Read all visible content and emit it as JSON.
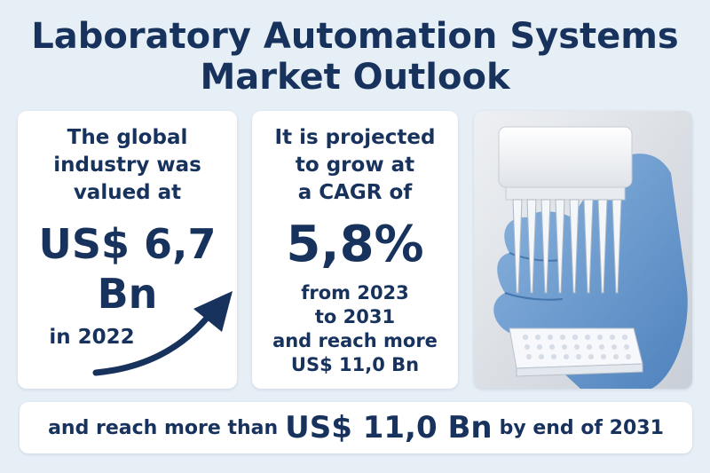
{
  "title": {
    "line1": "Laboratory Automation Systems",
    "line2": "Market Outlook"
  },
  "card_value": {
    "intro_line1": "The global",
    "intro_line2": "industry was",
    "intro_line3": "valued at",
    "amount_line1": "US$ 6,7",
    "amount_line2": "Bn",
    "year": "in 2022",
    "arrow_icon": "trend-up-arrow-icon"
  },
  "card_growth": {
    "intro_line1": "It is projected",
    "intro_line2": "to grow at",
    "intro_line3": "a CAGR of",
    "rate": "5,8%",
    "from": "from 2023",
    "to": "to 2031",
    "reach": "and reach more",
    "value": "US$ 11,0 Bn"
  },
  "photo": {
    "icon": "gloved-hand-multichannel-pipette-illustration"
  },
  "banner": {
    "prefix": "and reach more than",
    "amount": "US$ 11,0 Bn",
    "suffix": "by end of 2031"
  },
  "colors": {
    "background": "#e6eef6",
    "navy": "#17325c",
    "glove": "#6f9fd1",
    "card": "#ffffff"
  }
}
